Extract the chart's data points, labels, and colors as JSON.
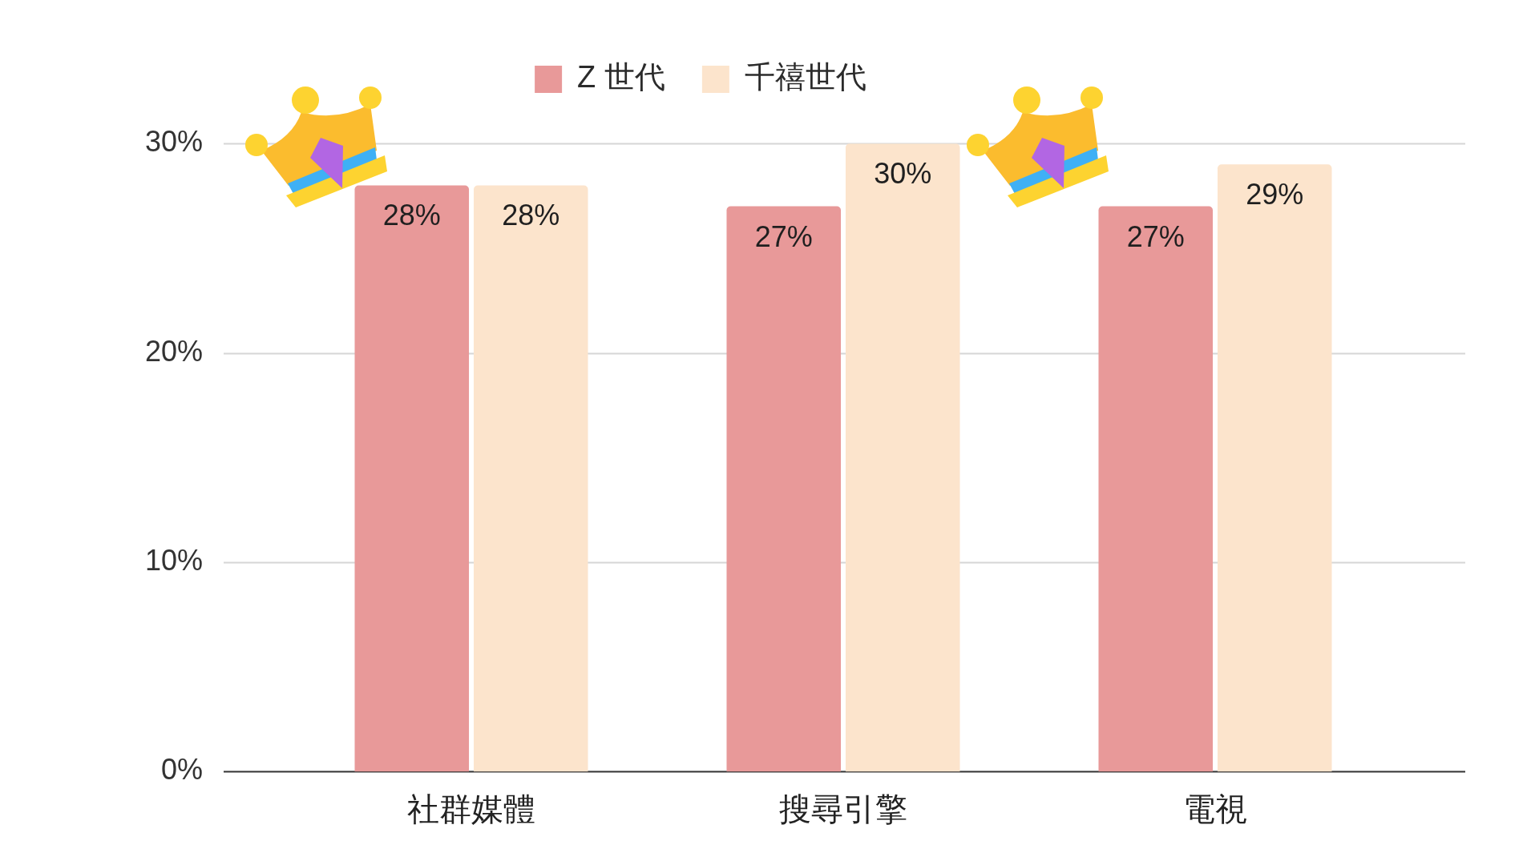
{
  "chart_data": {
    "type": "bar",
    "categories": [
      "社群媒體",
      "搜尋引擎",
      "電視"
    ],
    "series": [
      {
        "name": "Z 世代",
        "color": "#e89999",
        "values": [
          28,
          27,
          27
        ],
        "value_labels": [
          "28%",
          "27%",
          "27%"
        ]
      },
      {
        "name": "千禧世代",
        "color": "#fce4cc",
        "values": [
          28,
          30,
          29
        ],
        "value_labels": [
          "28%",
          "30%",
          "29%"
        ]
      }
    ],
    "ylim": [
      0,
      30
    ],
    "yticks": [
      {
        "value": 0,
        "label": "0%"
      },
      {
        "value": 10,
        "label": "10%"
      },
      {
        "value": 20,
        "label": "20%"
      },
      {
        "value": 30,
        "label": "30%"
      }
    ],
    "grid": "y",
    "legend": "top"
  }
}
